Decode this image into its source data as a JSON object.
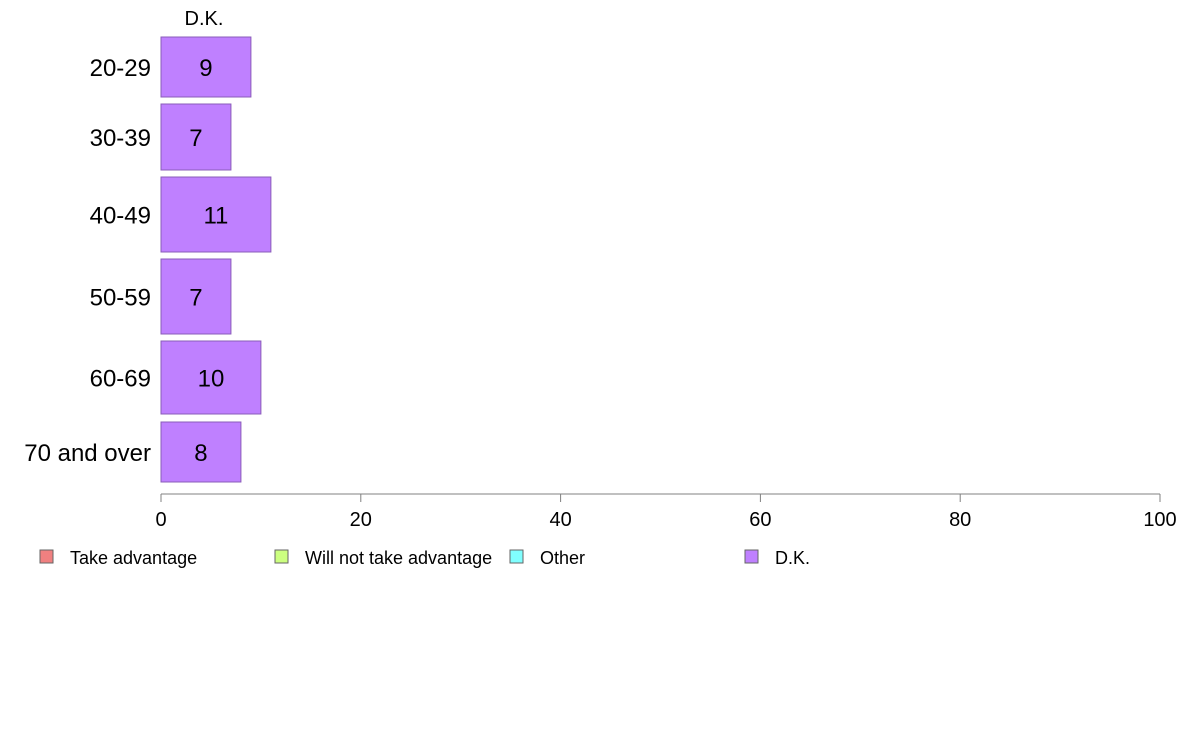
{
  "chart_data": {
    "type": "bar",
    "orientation": "horizontal",
    "stacked": true,
    "categories": [
      "20-29",
      "30-39",
      "40-49",
      "50-59",
      "60-69",
      "70 and over"
    ],
    "series": [
      {
        "name": "Take advantage",
        "color": "#f08080",
        "values": [
          null,
          null,
          null,
          null,
          null,
          null
        ]
      },
      {
        "name": "Will not take advantage",
        "color": "#ccff80",
        "values": [
          null,
          null,
          null,
          null,
          null,
          null
        ]
      },
      {
        "name": "Other",
        "color": "#80ffff",
        "values": [
          null,
          null,
          null,
          null,
          null,
          null
        ]
      },
      {
        "name": "D.K.",
        "color": "#bf80ff",
        "values": [
          9,
          7,
          11,
          7,
          10,
          8
        ]
      }
    ],
    "column_header": "D.K.",
    "xlim": [
      0,
      100
    ],
    "xticks": [
      0,
      20,
      40,
      60,
      80,
      100
    ],
    "grid": false,
    "legend_position": "bottom"
  }
}
